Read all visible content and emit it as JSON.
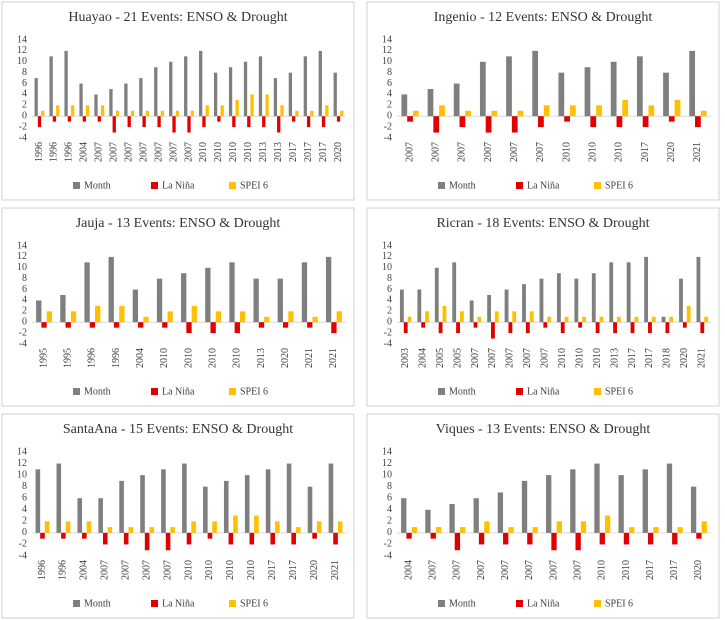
{
  "chart_data": [
    {
      "type": "bar",
      "title": "Huayao - 21 Events: ENSO & Drought",
      "categories": [
        "1996",
        "1996",
        "1996",
        "2004",
        "2007",
        "2007",
        "2007",
        "2007",
        "2007",
        "2007",
        "2007",
        "2010",
        "2010",
        "2010",
        "2010",
        "2013",
        "2013",
        "2017",
        "2017",
        "2017",
        "2020"
      ],
      "series": [
        {
          "name": "Month",
          "color": "#7f7f7f",
          "values": [
            7,
            11,
            12,
            6,
            4,
            5,
            6,
            7,
            9,
            10,
            11,
            12,
            8,
            9,
            10,
            11,
            7,
            8,
            11,
            12,
            8
          ]
        },
        {
          "name": "La Niña",
          "color": "#e00000",
          "values": [
            -2,
            -1,
            -1,
            -1,
            -1,
            -3,
            -2,
            -2,
            -2,
            -3,
            -3,
            -2,
            -1,
            -2,
            -2,
            -2,
            -3,
            -1,
            -2,
            -2,
            -1
          ]
        },
        {
          "name": "SPEI 6",
          "color": "#ffc000",
          "values": [
            1,
            2,
            2,
            2,
            2,
            1,
            1,
            1,
            1,
            1,
            1,
            2,
            2,
            3,
            4,
            4,
            2,
            1,
            1,
            2,
            1
          ]
        }
      ],
      "ylim": [
        -4,
        14
      ],
      "yticks": [
        -4,
        -2,
        0,
        2,
        4,
        6,
        8,
        10,
        12,
        14
      ],
      "grid": false,
      "legend": "bottom"
    },
    {
      "type": "bar",
      "title": "Ingenio - 12 Events: ENSO & Drought",
      "categories": [
        "2007",
        "2007",
        "2007",
        "2007",
        "2007",
        "2007",
        "2010",
        "2010",
        "2010",
        "2017",
        "2020",
        "2021"
      ],
      "series": [
        {
          "name": "Month",
          "color": "#7f7f7f",
          "values": [
            4,
            5,
            6,
            10,
            11,
            12,
            8,
            9,
            10,
            11,
            8,
            12
          ]
        },
        {
          "name": "La Niña",
          "color": "#e00000",
          "values": [
            -1,
            -3,
            -2,
            -3,
            -3,
            -2,
            -1,
            -2,
            -2,
            -2,
            -1,
            -2
          ]
        },
        {
          "name": "SPEI 6",
          "color": "#ffc000",
          "values": [
            1,
            2,
            1,
            1,
            1,
            2,
            2,
            2,
            3,
            2,
            3,
            1
          ]
        }
      ],
      "ylim": [
        -4,
        14
      ],
      "yticks": [
        -4,
        -2,
        0,
        2,
        4,
        6,
        8,
        10,
        12,
        14
      ],
      "grid": false,
      "legend": "bottom"
    },
    {
      "type": "bar",
      "title": "Jauja - 13 Events: ENSO & Drought",
      "categories": [
        "1995",
        "1995",
        "1996",
        "1996",
        "2004",
        "2010",
        "2010",
        "2010",
        "2010",
        "2013",
        "2020",
        "2021",
        "2021"
      ],
      "series": [
        {
          "name": "Month",
          "color": "#7f7f7f",
          "values": [
            4,
            5,
            11,
            12,
            6,
            8,
            9,
            10,
            11,
            8,
            8,
            11,
            12
          ]
        },
        {
          "name": "La Niña",
          "color": "#e00000",
          "values": [
            -1,
            -1,
            -1,
            -1,
            -1,
            -1,
            -2,
            -2,
            -2,
            -1,
            -1,
            -1,
            -2
          ]
        },
        {
          "name": "SPEI 6",
          "color": "#ffc000",
          "values": [
            2,
            2,
            3,
            3,
            1,
            2,
            3,
            2,
            2,
            1,
            2,
            1,
            2
          ]
        }
      ],
      "ylim": [
        -4,
        14
      ],
      "yticks": [
        -4,
        -2,
        0,
        2,
        4,
        6,
        8,
        10,
        12,
        14
      ],
      "grid": false,
      "legend": "bottom"
    },
    {
      "type": "bar",
      "title": "Ricran - 18 Events: ENSO & Drought",
      "categories": [
        "2003",
        "2004",
        "2005",
        "2005",
        "2007",
        "2007",
        "2007",
        "2007",
        "2007",
        "2010",
        "2010",
        "2010",
        "2013",
        "2017",
        "2017",
        "2018",
        "2020",
        "2021"
      ],
      "series": [
        {
          "name": "Month",
          "color": "#7f7f7f",
          "values": [
            6,
            6,
            10,
            11,
            4,
            5,
            6,
            7,
            8,
            9,
            8,
            9,
            11,
            11,
            12,
            1,
            8,
            12
          ]
        },
        {
          "name": "La Niña",
          "color": "#e00000",
          "values": [
            -2,
            -1,
            -2,
            -2,
            -1,
            -3,
            -2,
            -2,
            -1,
            -2,
            -1,
            -2,
            -2,
            -2,
            -2,
            -2,
            -1,
            -2
          ]
        },
        {
          "name": "SPEI 6",
          "color": "#ffc000",
          "values": [
            1,
            2,
            3,
            2,
            1,
            2,
            2,
            2,
            1,
            1,
            1,
            1,
            1,
            1,
            1,
            1,
            3,
            1
          ]
        }
      ],
      "ylim": [
        -4,
        14
      ],
      "yticks": [
        -4,
        -2,
        0,
        2,
        4,
        6,
        8,
        10,
        12,
        14
      ],
      "grid": false,
      "legend": "bottom"
    },
    {
      "type": "bar",
      "title": "SantaAna - 15 Events: ENSO & Drought",
      "categories": [
        "1996",
        "1996",
        "2004",
        "2007",
        "2007",
        "2007",
        "2007",
        "2010",
        "2010",
        "2010",
        "2010",
        "2017",
        "2017",
        "2020",
        "2021"
      ],
      "series": [
        {
          "name": "Month",
          "color": "#7f7f7f",
          "values": [
            11,
            12,
            6,
            6,
            9,
            10,
            11,
            12,
            8,
            9,
            10,
            11,
            12,
            8,
            12
          ]
        },
        {
          "name": "La Niña",
          "color": "#e00000",
          "values": [
            -1,
            -1,
            -1,
            -2,
            -2,
            -3,
            -3,
            -2,
            -1,
            -2,
            -2,
            -2,
            -2,
            -1,
            -2
          ]
        },
        {
          "name": "SPEI 6",
          "color": "#ffc000",
          "values": [
            2,
            2,
            2,
            1,
            1,
            1,
            1,
            2,
            2,
            3,
            3,
            2,
            1,
            2,
            2
          ]
        }
      ],
      "ylim": [
        -4,
        14
      ],
      "yticks": [
        -4,
        -2,
        0,
        2,
        4,
        6,
        8,
        10,
        12,
        14
      ],
      "grid": false,
      "legend": "bottom"
    },
    {
      "type": "bar",
      "title": "Viques - 13 Events: ENSO & Drought",
      "categories": [
        "2004",
        "2007",
        "2007",
        "2007",
        "2007",
        "2007",
        "2007",
        "2007",
        "2010",
        "2010",
        "2017",
        "2017",
        "2020"
      ],
      "series": [
        {
          "name": "Month",
          "color": "#7f7f7f",
          "values": [
            6,
            4,
            5,
            6,
            7,
            9,
            10,
            11,
            12,
            10,
            11,
            12,
            8
          ]
        },
        {
          "name": "La Niña",
          "color": "#e00000",
          "values": [
            -1,
            -1,
            -3,
            -2,
            -2,
            -2,
            -3,
            -3,
            -2,
            -2,
            -2,
            -2,
            -1
          ]
        },
        {
          "name": "SPEI 6",
          "color": "#ffc000",
          "values": [
            1,
            1,
            1,
            2,
            1,
            1,
            2,
            2,
            3,
            1,
            1,
            1,
            2
          ]
        }
      ],
      "ylim": [
        -4,
        14
      ],
      "yticks": [
        -4,
        -2,
        0,
        2,
        4,
        6,
        8,
        10,
        12,
        14
      ],
      "grid": false,
      "legend": "bottom"
    }
  ]
}
